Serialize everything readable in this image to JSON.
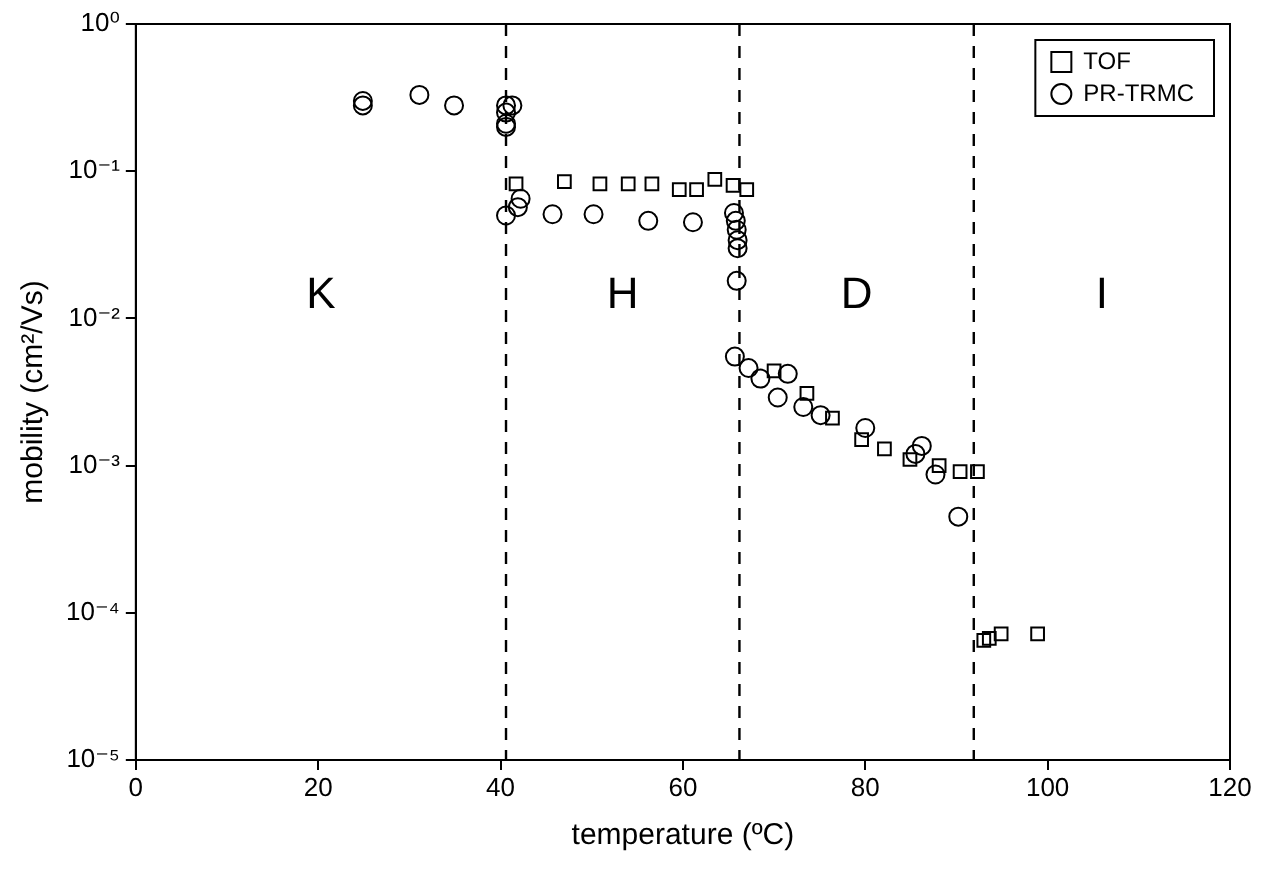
{
  "chart_data": {
    "type": "scatter",
    "xlabel": "temperature (ºC)",
    "ylabel": "mobility (cm²/Vs)",
    "xlim": [
      0,
      120
    ],
    "xticks": [
      0,
      20,
      40,
      60,
      80,
      100,
      120
    ],
    "ylim": [
      1e-05,
      1
    ],
    "log": "y",
    "yticks": [
      {
        "value": 1e-05,
        "label": "10⁻⁵"
      },
      {
        "value": 0.0001,
        "label": "10⁻⁴"
      },
      {
        "value": 0.001,
        "label": "10⁻³"
      },
      {
        "value": 0.01,
        "label": "10⁻²"
      },
      {
        "value": 0.1,
        "label": "10⁻¹"
      },
      {
        "value": 1,
        "label": "10⁰"
      }
    ],
    "grid": false,
    "legend": "top right",
    "series": [
      {
        "name": "TOF",
        "color": "#000000",
        "marker": "square",
        "x": [
          41.7,
          47,
          50.9,
          54,
          56.6,
          59.6,
          61.5,
          63.5,
          65.5,
          67,
          70,
          73.6,
          76.4,
          79.6,
          82.1,
          84.9,
          88.1,
          90.4,
          92.3,
          93,
          93.6,
          94.9,
          98.9
        ],
        "values": [
          0.082,
          0.085,
          0.082,
          0.082,
          0.082,
          0.075,
          0.075,
          0.088,
          0.08,
          0.075,
          0.0044,
          0.0031,
          0.0021,
          0.0015,
          0.0013,
          0.0011,
          0.001,
          0.00091,
          0.00091,
          6.5e-05,
          6.7e-05,
          7.2e-05,
          7.2e-05
        ]
      },
      {
        "name": "PR-TRMC",
        "color": "#000000",
        "marker": "circle",
        "x": [
          24.9,
          24.9,
          31.1,
          34.9,
          40.6,
          40.6,
          40.6,
          40.6,
          41.3,
          40.6,
          41.9,
          42.2,
          45.7,
          50.2,
          56.2,
          61.1,
          65.6,
          65.8,
          65.9,
          66,
          66,
          65.9,
          65.7,
          67.2,
          68.5,
          70.4,
          71.5,
          73.2,
          75.1,
          80,
          86.2,
          85.5,
          87.7,
          90.2
        ],
        "values": [
          0.3,
          0.28,
          0.33,
          0.28,
          0.28,
          0.25,
          0.21,
          0.2,
          0.28,
          0.05,
          0.057,
          0.065,
          0.051,
          0.051,
          0.046,
          0.045,
          0.052,
          0.046,
          0.04,
          0.034,
          0.03,
          0.018,
          0.0055,
          0.0046,
          0.0039,
          0.0029,
          0.0042,
          0.0025,
          0.0022,
          0.0018,
          0.00136,
          0.0012,
          0.00087,
          0.00045
        ]
      }
    ],
    "ref_lines": [
      {
        "axis": "x",
        "value": 40.6,
        "line_style": "dashed",
        "color": "#000000"
      },
      {
        "axis": "x",
        "value": 66.2,
        "line_style": "dashed",
        "color": "#000000"
      },
      {
        "axis": "x",
        "value": 91.9,
        "line_style": "dashed",
        "color": "#000000"
      }
    ],
    "annotations": [
      "K",
      "H",
      "D",
      "I"
    ]
  }
}
